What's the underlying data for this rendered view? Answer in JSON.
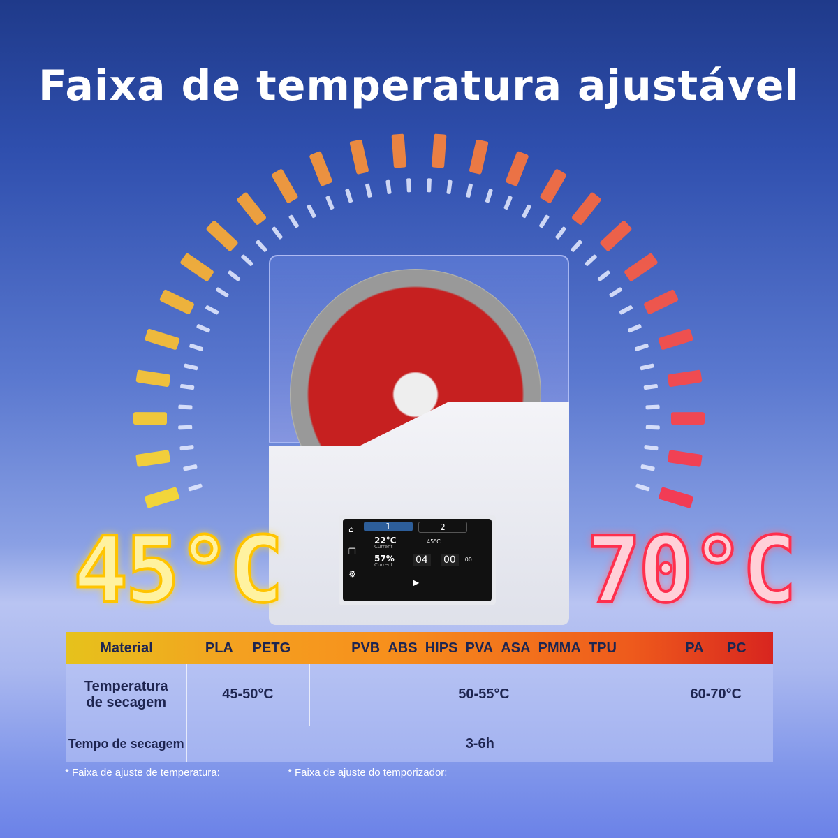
{
  "title": "Faixa de temperatura ajustável",
  "min_temp": "45°C",
  "max_temp": "70°C",
  "colors": {
    "min": "#ffd21a",
    "max": "#ff3a55",
    "header_start": "#e6c21c",
    "header_end": "#d8251f"
  },
  "device_screen": {
    "tab1": "1",
    "tab2": "2",
    "temp": "22°C",
    "temp_label": "Current",
    "set_temp": "45°C",
    "humidity": "57%",
    "humidity_label": "Current",
    "hours": "04",
    "minutes": "00",
    "seconds": ":00"
  },
  "table": {
    "header": {
      "label": "Material",
      "group1": [
        "PLA",
        "PETG"
      ],
      "group2": [
        "PVB",
        "ABS",
        "HIPS",
        "PVA",
        "ASA",
        "PMMA",
        "TPU"
      ],
      "group3": [
        "PA",
        "PC"
      ]
    },
    "row1": {
      "label": "Temperatura de secagem",
      "values": [
        "45-50°C",
        "50-55°C",
        "60-70°C"
      ]
    },
    "row2": {
      "label": "Tempo de secagem",
      "value": "3-6h"
    }
  },
  "footnotes": [
    "* Faixa de ajuste de temperatura:",
    "* Faixa de ajuste do temporizador:"
  ]
}
